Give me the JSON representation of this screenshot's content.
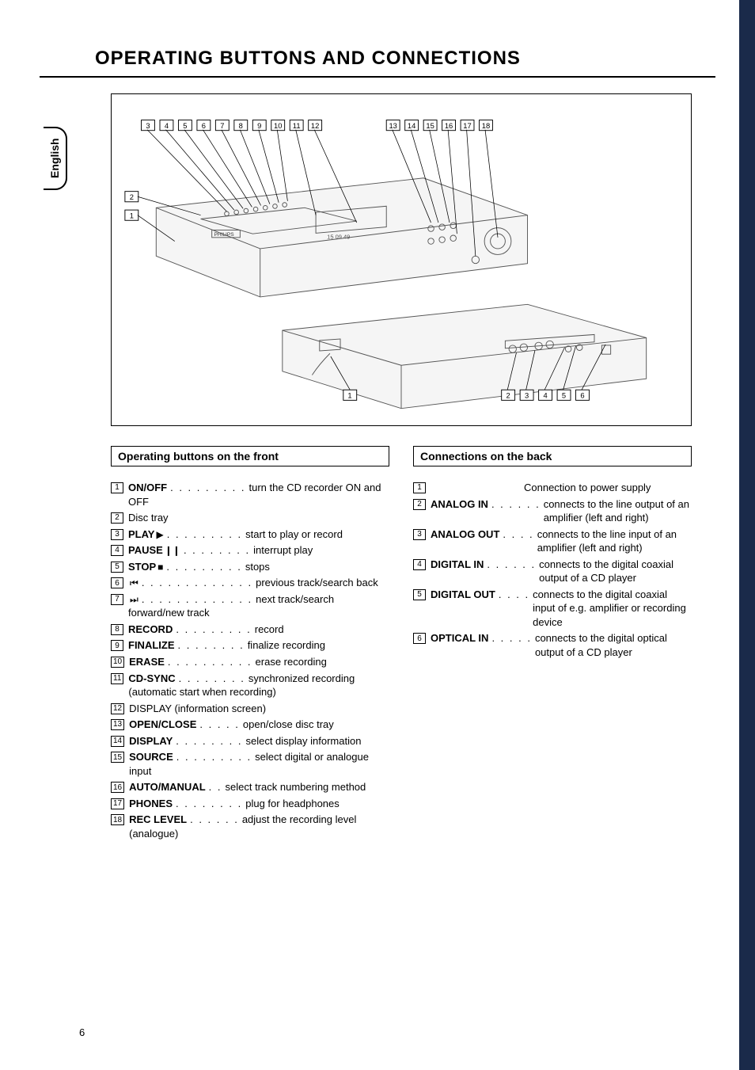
{
  "page_number": "6",
  "title": "OPERATING BUTTONS AND CONNECTIONS",
  "lang_tab": "English",
  "section_front": "Operating buttons on the front",
  "section_back": "Connections on the back",
  "front_callouts_top": [
    "3",
    "4",
    "5",
    "6",
    "7",
    "8",
    "9",
    "10",
    "11",
    "12"
  ],
  "front_callouts_top2": [
    "13",
    "14",
    "15",
    "16",
    "17",
    "18"
  ],
  "front_callouts_left": [
    "2",
    "1"
  ],
  "back_callouts_left": [
    "1"
  ],
  "back_callouts_bottom": [
    "2",
    "3",
    "4",
    "5",
    "6"
  ],
  "front_items": [
    {
      "n": "1",
      "label": "ON/OFF",
      "icon": "",
      "dots": ". . . . . . . . .",
      "desc": "turn the CD recorder ON and OFF"
    },
    {
      "n": "2",
      "label": "",
      "icon": "",
      "dots": "",
      "desc": "Disc tray"
    },
    {
      "n": "3",
      "label": "PLAY",
      "icon": "▶",
      "dots": ". . . . . . . . .",
      "desc": "start to play or record"
    },
    {
      "n": "4",
      "label": "PAUSE",
      "icon": "❙❙",
      "dots": ". . . . . . . .",
      "desc": "interrupt play"
    },
    {
      "n": "5",
      "label": "STOP",
      "icon": "■",
      "dots": ". . . . . . . . .",
      "desc": "stops"
    },
    {
      "n": "6",
      "label": "",
      "icon": "⏮",
      "dots": ". . . . . . . . . . . . .",
      "desc": "previous track/search back"
    },
    {
      "n": "7",
      "label": "",
      "icon": "⏭",
      "dots": ". . . . . . . . . . . . .",
      "desc": "next track/search forward/new track"
    },
    {
      "n": "8",
      "label": "RECORD",
      "icon": "",
      "dots": ". . . . . . . . .",
      "desc": "record"
    },
    {
      "n": "9",
      "label": "FINALIZE",
      "icon": "",
      "dots": ". . . . . . . .",
      "desc": "finalize recording"
    },
    {
      "n": "10",
      "label": "ERASE",
      "icon": "",
      "dots": ". . . . . . . . . .",
      "desc": "erase recording"
    },
    {
      "n": "11",
      "label": "CD-SYNC",
      "icon": "",
      "dots": ". . . . . . . .",
      "desc": "synchronized recording (automatic start when recording)"
    },
    {
      "n": "12",
      "label": "",
      "icon": "",
      "dots": "",
      "desc": "DISPLAY (information screen)"
    },
    {
      "n": "13",
      "label": "OPEN/CLOSE",
      "icon": "",
      "dots": ". . . . .",
      "desc": "open/close disc tray"
    },
    {
      "n": "14",
      "label": "DISPLAY",
      "icon": "",
      "dots": ". . . . . . . .",
      "desc": "select display information"
    },
    {
      "n": "15",
      "label": "SOURCE",
      "icon": "",
      "dots": ". . . . . . . . .",
      "desc": "select digital or analogue input"
    },
    {
      "n": "16",
      "label": "AUTO/MANUAL",
      "icon": "",
      "dots": ". .",
      "desc": "select track numbering method"
    },
    {
      "n": "17",
      "label": "PHONES",
      "icon": "",
      "dots": ". . . . . . . .",
      "desc": "plug for headphones"
    },
    {
      "n": "18",
      "label": "REC LEVEL",
      "icon": "",
      "dots": ". . . . . .",
      "desc": "adjust the recording level (analogue)"
    }
  ],
  "back_items": [
    {
      "n": "1",
      "label": "",
      "dots": "",
      "desc": "Connection to power supply"
    },
    {
      "n": "2",
      "label": "ANALOG IN",
      "dots": ". . . . . .",
      "desc": "connects to the line output of an amplifier (left and right)"
    },
    {
      "n": "3",
      "label": "ANALOG OUT",
      "dots": ". . . .",
      "desc": "connects to the line input of an amplifier (left and right)"
    },
    {
      "n": "4",
      "label": "DIGITAL IN",
      "dots": ". . . . . .",
      "desc": "connects to the digital coaxial output of a CD player"
    },
    {
      "n": "5",
      "label": "DIGITAL OUT",
      "dots": ". . . .",
      "desc": "connects to the digital coaxial input of e.g. amplifier or recording device"
    },
    {
      "n": "6",
      "label": "OPTICAL IN",
      "dots": ". . . . .",
      "desc": "connects to the digital optical output of a CD player"
    }
  ]
}
